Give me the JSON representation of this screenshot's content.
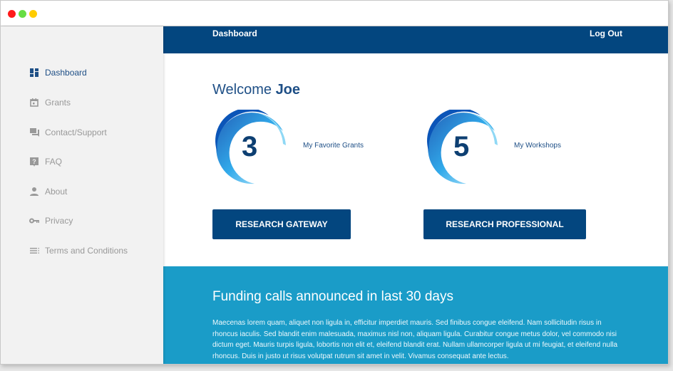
{
  "window": {
    "controls": [
      {
        "name": "close",
        "color": "#ff1a1a"
      },
      {
        "name": "maximize",
        "color": "#66dd44"
      },
      {
        "name": "minimize",
        "color": "#ffcc00"
      }
    ]
  },
  "sidebar": {
    "items": [
      {
        "label": "Dashboard",
        "icon": "dashboard-icon",
        "active": true
      },
      {
        "label": "Grants",
        "icon": "calendar-icon"
      },
      {
        "label": "Contact/Support",
        "icon": "chat-icon"
      },
      {
        "label": "FAQ",
        "icon": "help-icon"
      },
      {
        "label": "About",
        "icon": "person-icon"
      },
      {
        "label": "Privacy",
        "icon": "key-icon"
      },
      {
        "label": "Terms and Conditions",
        "icon": "list-icon"
      }
    ]
  },
  "header": {
    "title": "Dashboard",
    "logout": "Log Out"
  },
  "welcome": {
    "prefix": "Welcome",
    "name": "Joe"
  },
  "stats": [
    {
      "value": "3",
      "label": "My Favorite Grants"
    },
    {
      "value": "5",
      "label": "My Workshops"
    }
  ],
  "buttons": {
    "gateway": "RESEARCH GATEWAY",
    "professional": "RESEARCH PROFESSIONAL"
  },
  "funding": {
    "title": "Funding calls announced in last 30 days",
    "body": "Maecenas lorem quam, aliquet non ligula in, efficitur imperdiet mauris. Sed finibus congue eleifend. Nam sollicitudin risus in rhoncus iaculis. Sed blandit enim malesuada, maximus nisl non, aliquam ligula. Curabitur congue metus dolor, vel commodo nisi dictum eget. Mauris turpis ligula, lobortis non elit et, eleifend blandit erat. Nullam ullamcorper ligula ut mi feugiat, et eleifend nulla rhoncus. Duis in justo ut risus volutpat rutrum sit amet in velit. Vivamus consequat ante lectus."
  },
  "colors": {
    "primary": "#03467f",
    "accent": "#1a9cc8",
    "sidebar": "#f2f2f2"
  }
}
